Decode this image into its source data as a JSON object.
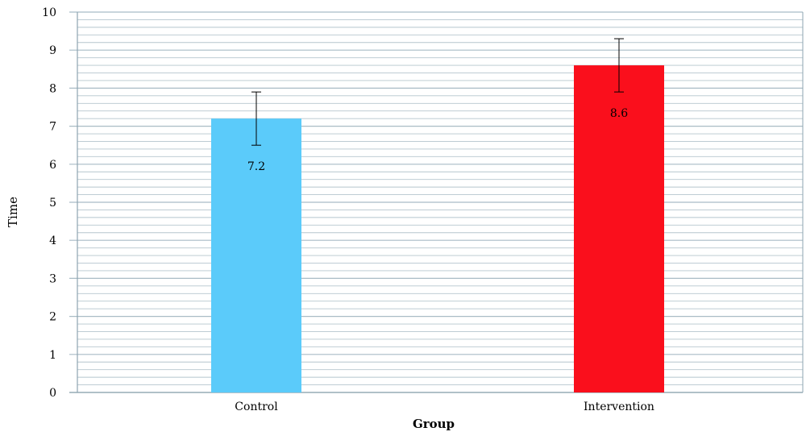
{
  "chart_data": {
    "type": "bar",
    "categories": [
      "Control",
      "Intervention"
    ],
    "values": [
      7.2,
      8.6
    ],
    "data_labels": [
      "7.2",
      "8.6"
    ],
    "error_bars": [
      {
        "low": 6.5,
        "high": 7.9
      },
      {
        "low": 7.9,
        "high": 9.3
      }
    ],
    "colors": [
      "#5bcbfa",
      "#fa0f1c"
    ],
    "xlabel": "Group",
    "ylabel": "Time",
    "ylim": [
      0,
      10
    ],
    "y_ticks": [
      "0",
      "1",
      "2",
      "3",
      "4",
      "5",
      "6",
      "7",
      "8",
      "9",
      "10"
    ],
    "grid": true,
    "grid_color": "#a9bcc6",
    "legend": "none"
  }
}
